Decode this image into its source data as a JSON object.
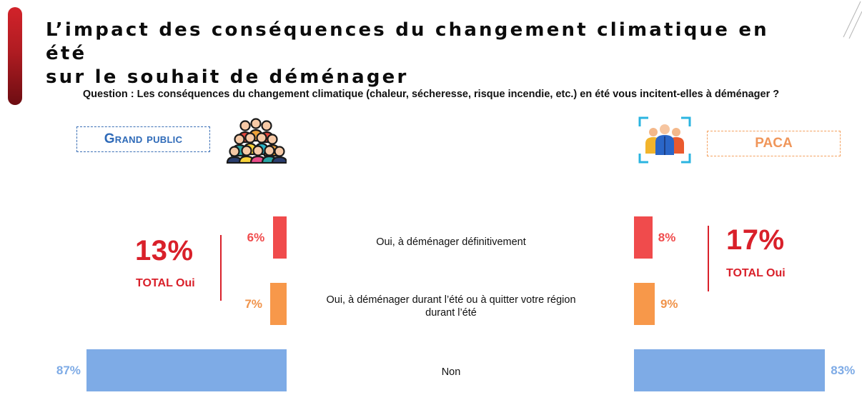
{
  "title_line1": "L’impact des conséquences du changement climatique en été",
  "title_line2": "sur le souhait de déménager",
  "question": "Question : Les conséquences du changement climatique (chaleur, sécheresse, risque incendie, etc.) en été vous incitent-elles à déménager ?",
  "left_panel": {
    "label": "Grand public",
    "total_pct": "13%",
    "total_label": "TOTAL Oui",
    "icon": "crowd-people-icon"
  },
  "right_panel": {
    "label": "PACA",
    "total_pct": "17%",
    "total_label": "TOTAL Oui",
    "icon": "group-people-focus-icon"
  },
  "colors": {
    "red": "#f04b4c",
    "orange": "#f7984a",
    "blue": "#7eabe6",
    "total": "#d9202a"
  },
  "chart_data": {
    "type": "bar",
    "orientation": "horizontal-butterfly",
    "categories": [
      "Oui, à déménager définitivement",
      "Oui, à déménager durant l’été ou à quitter votre région durant l’été",
      "Non"
    ],
    "category_lines": [
      [
        "Oui, à déménager définitivement"
      ],
      [
        "Oui, à déménager durant l’été ou à quitter votre région",
        "durant l’été"
      ],
      [
        "Non"
      ]
    ],
    "series": [
      {
        "name": "Grand public",
        "values": [
          6,
          7,
          87
        ],
        "labels": [
          "6%",
          "7%",
          "87%"
        ]
      },
      {
        "name": "PACA",
        "values": [
          8,
          9,
          83
        ],
        "labels": [
          "8%",
          "9%",
          "83%"
        ]
      }
    ],
    "unit": "%",
    "xlim": [
      0,
      100
    ]
  }
}
